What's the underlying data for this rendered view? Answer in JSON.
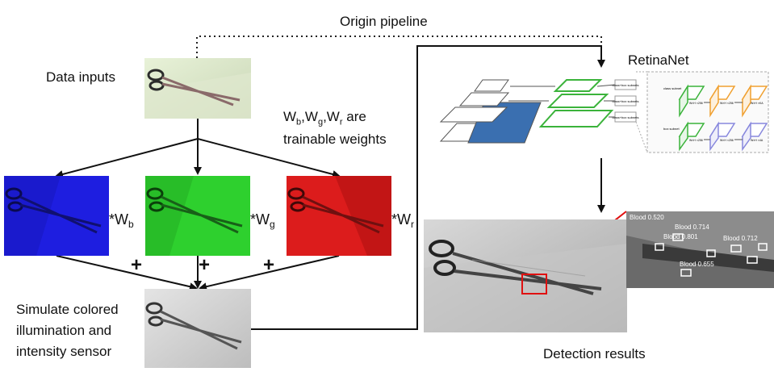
{
  "labels": {
    "origin_pipeline": "Origin pipeline",
    "data_inputs": "Data inputs",
    "weights_line1_parts": [
      "W",
      "b",
      ",W",
      "g",
      ",W",
      "r",
      " are"
    ],
    "weights_line2": "trainable weights",
    "simulate_line1": "Simulate colored",
    "simulate_line2": "illumination and",
    "simulate_line3": "intensity sensor",
    "retinanet": "RetinaNet",
    "detection_results": "Detection results"
  },
  "operators": {
    "plus": "+",
    "mult_b": [
      "*W",
      "b"
    ],
    "mult_g": [
      "*W",
      "g"
    ],
    "mult_r": [
      "*W",
      "r"
    ]
  },
  "retinanet_arch": {
    "head_label": "class+box subnets",
    "subnet_class": "class subnet",
    "subnet_box": "box subnet",
    "block_text": "W×H ×256",
    "out_class": "W×H ×KA",
    "out_box": "W×H ×4A"
  },
  "detections": {
    "labels": [
      "Blood 0.520",
      "Blood 0.714",
      "Blood 0.801",
      "Blood 0.712",
      "Blood 0.655"
    ]
  },
  "colors": {
    "blue_channel": "#1a1ad6",
    "green_channel": "#27c927",
    "red_channel": "#d61a1a",
    "highlight": "#e01010",
    "fpn_green": "#3bb33b",
    "head_orange": "#f0a030",
    "head_purple": "#8888dd"
  }
}
